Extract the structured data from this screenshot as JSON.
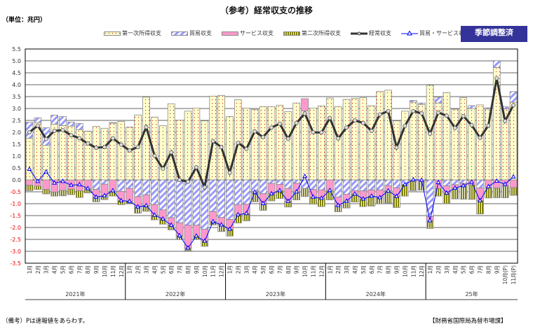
{
  "title": "（参考）経常収支の推移",
  "unit": "（単位：兆円）",
  "badge": "季節調整済",
  "note": "（備考）Pは速報値をあらわす。",
  "source": "【財務省国際局為替市場課】",
  "colors": {
    "primary": "#ffffcc",
    "primary_dot": "#cc0000",
    "trade": "#9999ff",
    "services": "#ff99cc",
    "secondary": "#808000",
    "current": "#333333",
    "trade_services": "#0000ff",
    "badge": "#333399"
  },
  "chart_data": {
    "type": "bar+line",
    "ylim": [
      -3.5,
      5.5
    ],
    "yticks": [
      "5.5",
      "5.0",
      "4.5",
      "4.0",
      "3.5",
      "3.0",
      "2.5",
      "2.0",
      "1.5",
      "1.0",
      "0.5",
      "0.0",
      "-0.5",
      "-1.0",
      "-1.5",
      "-2.0",
      "-2.5",
      "-3.0",
      "-3.5"
    ],
    "grid": true,
    "legend_position": "top",
    "years": [
      {
        "label": "2021年",
        "months": 12
      },
      {
        "label": "2022年",
        "months": 12
      },
      {
        "label": "2023年",
        "months": 12
      },
      {
        "label": "2024年",
        "months": 12
      },
      {
        "label": "25年",
        "months": 11
      }
    ],
    "categories": [
      "1月",
      "2月",
      "3月",
      "4月",
      "5月",
      "6月",
      "7月",
      "8月",
      "9月",
      "10月",
      "11月",
      "12月",
      "1月",
      "2月",
      "3月",
      "4月",
      "5月",
      "6月",
      "7月",
      "8月",
      "9月",
      "10月",
      "11月",
      "12月",
      "1月",
      "2月",
      "3月",
      "4月",
      "5月",
      "6月",
      "7月",
      "8月",
      "9月",
      "10月",
      "11月",
      "12月",
      "1月",
      "2月",
      "3月",
      "4月",
      "5月",
      "6月",
      "7月",
      "8月",
      "9月",
      "10月",
      "11月",
      "12月",
      "1月",
      "2月",
      "3月",
      "4月",
      "5月",
      "6月",
      "7月",
      "8月",
      "9月",
      "10月(P)",
      "11月(P)"
    ],
    "series": [
      {
        "name": "第一次所得収支",
        "kind": "bar",
        "values": [
          1.75,
          2.41,
          1.45,
          2.34,
          2.28,
          2.26,
          2.11,
          2.04,
          2.25,
          2.17,
          2.38,
          2.46,
          2.22,
          2.73,
          3.48,
          2.64,
          2.28,
          3.2,
          2.51,
          2.89,
          3.02,
          2.48,
          3.52,
          3.55,
          2.66,
          3.37,
          3.02,
          2.96,
          3.08,
          3.08,
          3.14,
          2.87,
          3.23,
          2.9,
          3.02,
          3.11,
          3.44,
          3.08,
          3.38,
          3.43,
          3.46,
          3.12,
          3.72,
          3.77,
          2.48,
          2.89,
          3.27,
          3.17,
          3.98,
          3.23,
          3.67,
          2.97,
          3.46,
          3.0,
          3.15,
          2.98,
          4.72,
          2.98,
          3.26
        ]
      },
      {
        "name": "貿易収支",
        "kind": "bar",
        "values": [
          0.67,
          0.2,
          0.74,
          0.38,
          0.38,
          0.17,
          0.26,
          0.01,
          -0.4,
          -0.18,
          0.03,
          -0.48,
          -0.36,
          -0.7,
          -0.63,
          -1.04,
          -1.26,
          -1.59,
          -1.8,
          -1.9,
          -1.9,
          -2.07,
          -1.33,
          -1.58,
          -1.66,
          -1.04,
          -1.02,
          -0.48,
          -0.58,
          -0.15,
          -0.19,
          -0.36,
          -0.14,
          -0.36,
          -0.4,
          -0.42,
          0,
          -0.72,
          -0.6,
          -0.45,
          -0.46,
          -0.42,
          -0.42,
          -0.24,
          -0.33,
          -0.19,
          0.07,
          0.06,
          -1.54,
          0.25,
          -0.25,
          -0.2,
          -0.15,
          0.12,
          -0.34,
          0.05,
          0.29,
          0.09,
          0.45
        ]
      },
      {
        "name": "サービス収支",
        "kind": "bar",
        "values": [
          -0.22,
          -0.26,
          -0.4,
          -0.51,
          -0.44,
          -0.39,
          -0.46,
          -0.37,
          -0.32,
          -0.48,
          -0.48,
          -0.39,
          -0.54,
          -0.43,
          -0.45,
          -0.44,
          -0.38,
          -0.31,
          -0.54,
          -0.96,
          -0.46,
          -0.5,
          -0.42,
          -0.31,
          -0.41,
          -0.42,
          -0.39,
          -0.03,
          -0.41,
          -0.43,
          -0.26,
          -0.54,
          -0.36,
          0.51,
          -0.32,
          -0.35,
          -0.44,
          -0.35,
          -0.29,
          -0.14,
          -0.34,
          -0.26,
          -0.32,
          -0.22,
          -0.36,
          0,
          -0.06,
          -0.07,
          -0.17,
          -0.36,
          -0.3,
          -0.14,
          -0.09,
          -0.21,
          -0.53,
          -0.33,
          -0.34,
          -0.27,
          -0.32
        ]
      },
      {
        "name": "第二次所得収支",
        "kind": "bar",
        "values": [
          -0.23,
          -0.14,
          -0.19,
          -0.17,
          -0.23,
          -0.23,
          -0.28,
          -0.18,
          -0.2,
          -0.17,
          -0.2,
          -0.17,
          -0.08,
          -0.27,
          -0.24,
          -0.2,
          -0.22,
          -0.2,
          -0.17,
          -0.11,
          -0.13,
          -0.22,
          -0.14,
          -0.28,
          -0.29,
          -0.35,
          -0.31,
          -0.41,
          -0.29,
          -0.3,
          -0.33,
          -0.24,
          -0.34,
          -0.34,
          -0.3,
          -0.35,
          -0.4,
          -0.27,
          -0.29,
          -0.34,
          -0.32,
          -0.42,
          -0.27,
          -0.51,
          -0.47,
          -0.49,
          -0.39,
          -0.36,
          -0.33,
          -0.32,
          -0.44,
          -0.46,
          -0.57,
          -0.61,
          -0.56,
          -0.43,
          -0.41,
          -0.48,
          -0.33
        ]
      },
      {
        "name": "経常収支",
        "kind": "line",
        "values": [
          2.0,
          2.28,
          1.72,
          2.06,
          2.09,
          1.88,
          1.75,
          1.53,
          1.35,
          1.38,
          1.75,
          1.48,
          1.24,
          1.38,
          2.22,
          1.01,
          0.47,
          1.16,
          0.0,
          -0.08,
          0.53,
          -0.31,
          1.63,
          1.38,
          0.3,
          1.56,
          1.3,
          2.04,
          1.8,
          2.2,
          2.36,
          1.73,
          2.39,
          2.79,
          2.0,
          1.99,
          2.6,
          1.74,
          2.2,
          2.5,
          2.39,
          2.06,
          2.75,
          2.89,
          1.36,
          2.27,
          2.89,
          2.8,
          1.94,
          2.83,
          2.7,
          2.18,
          2.68,
          2.3,
          1.77,
          2.28,
          4.27,
          2.47,
          3.14
        ]
      },
      {
        "name": "貿易・サービス収支",
        "kind": "line",
        "values": [
          0.45,
          -0.06,
          0.34,
          -0.13,
          -0.06,
          -0.22,
          -0.2,
          -0.36,
          -0.72,
          -0.66,
          -0.45,
          -0.87,
          -0.9,
          -1.13,
          -1.08,
          -1.48,
          -1.64,
          -1.9,
          -2.34,
          -2.86,
          -2.36,
          -2.57,
          -1.75,
          -1.89,
          -2.07,
          -1.46,
          -1.41,
          -0.51,
          -0.99,
          -0.58,
          -0.45,
          -0.9,
          -0.5,
          0.15,
          -0.72,
          -0.77,
          -0.44,
          -1.07,
          -0.89,
          -0.59,
          -0.8,
          -0.68,
          -0.74,
          -0.46,
          -0.69,
          -0.19,
          0.01,
          -0.01,
          -1.71,
          -0.11,
          -0.55,
          -0.34,
          -0.24,
          -0.09,
          -0.87,
          -0.28,
          -0.05,
          -0.18,
          0.13
        ]
      }
    ]
  }
}
